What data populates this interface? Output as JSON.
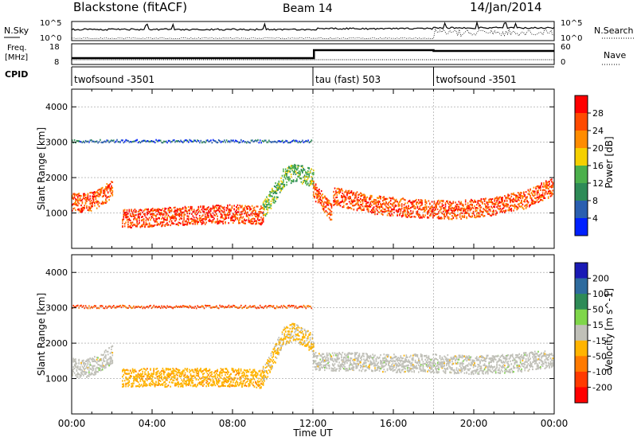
{
  "header": {
    "station": "Blackstone (fitACF)",
    "beam": "Beam 14",
    "date": "14/Jan/2014"
  },
  "strip_labels": {
    "nsky": "N.Sky",
    "nsearch": "N.Search",
    "freq_line1": "Freq.",
    "freq_line2": "[MHz]",
    "nave": "Nave",
    "cpid": "CPID",
    "nsky_ticks": [
      "10^5",
      "10^0"
    ],
    "nsearch_ticks": [
      "10^5",
      "10^0"
    ],
    "freq_ticks": [
      "18",
      "8"
    ],
    "nave_ticks": [
      "60",
      "0"
    ]
  },
  "cpid_segments": [
    {
      "start_hour": 0,
      "label": "twofsound -3501"
    },
    {
      "start_hour": 12,
      "label": "tau (fast) 503"
    },
    {
      "start_hour": 18,
      "label": "twofsound -3501"
    }
  ],
  "x_axis": {
    "label": "Time UT",
    "tick_labels": [
      "00:00",
      "04:00",
      "08:00",
      "12:00",
      "16:00",
      "20:00",
      "00:00"
    ]
  },
  "colors": {
    "power": [
      "#0020ff",
      "#2a5fb0",
      "#2e8b57",
      "#4cb04c",
      "#f5d000",
      "#ff8c00",
      "#ff4a00",
      "#ff0000"
    ],
    "velocity": [
      "#1a1ab5",
      "#2e6b9e",
      "#2e8b57",
      "#7fd64a",
      "#c0c0b8",
      "#ffb400",
      "#ff7a00",
      "#ff3a00",
      "#ff0000"
    ]
  },
  "chart_data": [
    {
      "type": "heatmap",
      "title": "Power",
      "xlabel": "Time UT",
      "ylabel": "Slant Range [km]",
      "xlim": [
        0,
        24
      ],
      "ylim": [
        0,
        4500
      ],
      "y_ticks": [
        "1000",
        "2000",
        "3000",
        "4000"
      ],
      "colorbar": {
        "label": "Power [dB]",
        "ticks": [
          "4",
          "8",
          "12",
          "16",
          "20",
          "24",
          "28"
        ],
        "range": [
          0,
          32
        ]
      },
      "bands": [
        {
          "x": [
            0.0,
            0.5,
            1.0,
            1.5,
            2.0
          ],
          "y": [
            1350,
            1300,
            1350,
            1500,
            1700
          ],
          "level": 26
        },
        {
          "x": [
            2.5,
            4.0,
            6.0,
            8.0,
            9.5
          ],
          "y": [
            850,
            900,
            950,
            1000,
            950
          ],
          "level": 27
        },
        {
          "x": [
            9.5,
            10.0,
            10.5,
            11.0,
            11.5,
            12.0
          ],
          "y": [
            1100,
            1500,
            2000,
            2150,
            2100,
            2000
          ],
          "level": 14
        },
        {
          "x": [
            12.0,
            12.3,
            12.6,
            12.9
          ],
          "y": [
            1700,
            1450,
            1250,
            1050
          ],
          "level": 26
        },
        {
          "x": [
            13.0,
            15.0,
            17.0,
            19.0,
            21.0,
            22.5,
            23.9
          ],
          "y": [
            1500,
            1250,
            1150,
            1100,
            1200,
            1400,
            1750
          ],
          "level": 26
        },
        {
          "x": [
            0.0,
            4.0,
            8.0,
            11.9
          ],
          "y": [
            3050,
            3050,
            3050,
            3050
          ],
          "level": 6
        }
      ]
    },
    {
      "type": "heatmap",
      "title": "Velocity",
      "xlabel": "Time UT",
      "ylabel": "Slant Range [km]",
      "xlim": [
        0,
        24
      ],
      "ylim": [
        0,
        4500
      ],
      "y_ticks": [
        "1000",
        "2000",
        "3000",
        "4000"
      ],
      "colorbar": {
        "label": "Velocity [m s^-1]",
        "ticks": [
          "200",
          "100",
          "50",
          "15",
          "-15",
          "-50",
          "-100",
          "-200"
        ],
        "range": [
          -250,
          250
        ]
      },
      "bands": [
        {
          "x": [
            0.0,
            0.5,
            1.0,
            1.5,
            2.0
          ],
          "y": [
            1350,
            1300,
            1350,
            1500,
            1700
          ],
          "level": 0
        },
        {
          "x": [
            2.5,
            4.0,
            6.0,
            8.0,
            9.5
          ],
          "y": [
            1050,
            1050,
            1050,
            1050,
            1000
          ],
          "level": -60
        },
        {
          "x": [
            9.5,
            10.0,
            10.5,
            11.0,
            11.5,
            12.0
          ],
          "y": [
            1100,
            1600,
            2200,
            2350,
            2200,
            2000
          ],
          "level": -40
        },
        {
          "x": [
            12.0,
            14.0,
            16.0,
            18.0,
            20.0,
            22.0,
            23.9
          ],
          "y": [
            1500,
            1500,
            1450,
            1450,
            1400,
            1450,
            1600
          ],
          "level": 0
        },
        {
          "x": [
            0.0,
            4.0,
            8.0,
            11.9
          ],
          "y": [
            3050,
            3050,
            3050,
            3050
          ],
          "level": -150
        }
      ]
    }
  ]
}
